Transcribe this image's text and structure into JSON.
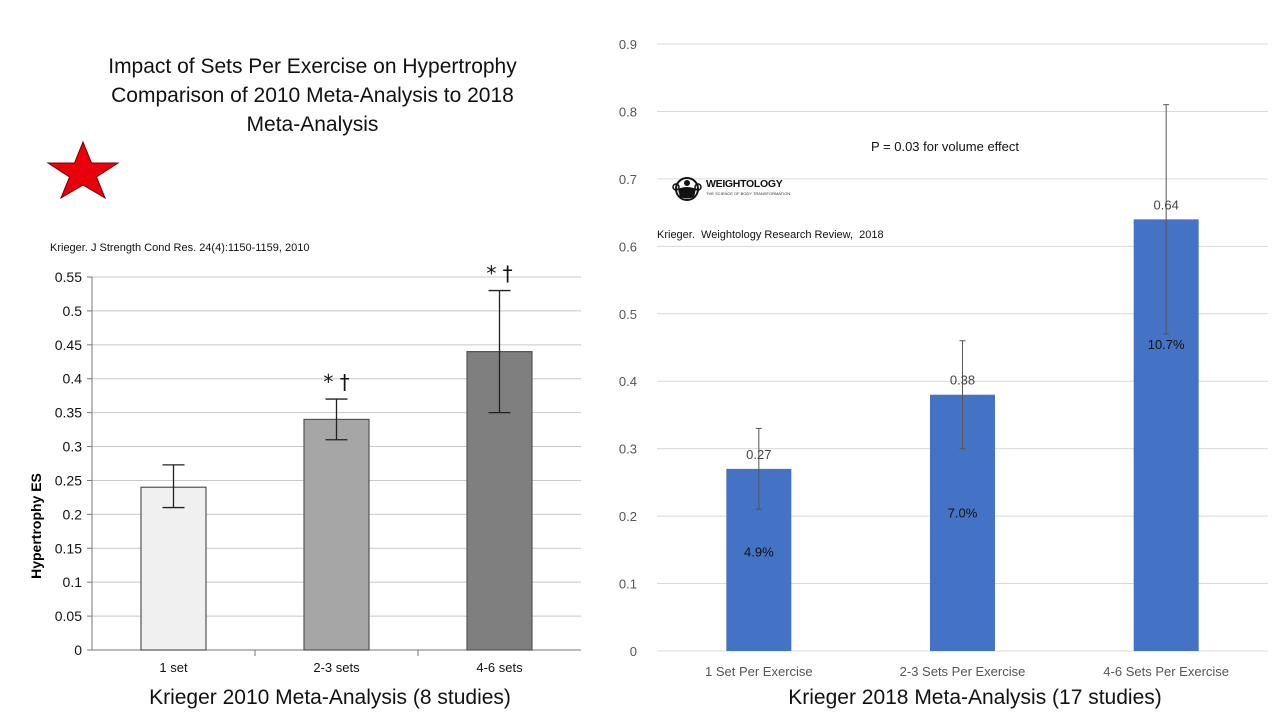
{
  "slide": {
    "title_line1": "Impact of Sets Per Exercise on Hypertrophy",
    "title_line2": "Comparison of 2010 Meta-Analysis to 2018",
    "title_line3": "Meta-Analysis",
    "caption_left": "Krieger 2010 Meta-Analysis (8 studies)",
    "caption_right": "Krieger 2018 Meta-Analysis (17 studies)",
    "logo_text": "WEIGHTOLOGY",
    "logo_subtext": "THE SCIENCE OF BODY TRANSFORMATION",
    "star_icon": "red-star-icon",
    "star_color": "#e8000b"
  },
  "chart_data": [
    {
      "type": "bar",
      "annotation": "Krieger. J Strength Cond Res. 24(4):1150-1159, 2010",
      "ylabel": "Hypertrophy ES",
      "xlabel": "",
      "ylim": [
        0,
        0.55
      ],
      "yticks": [
        "0",
        "0.05",
        "0.1",
        "0.15",
        "0.2",
        "0.25",
        "0.3",
        "0.35",
        "0.4",
        "0.45",
        "0.5",
        "0.55"
      ],
      "grid": true,
      "categories": [
        "1 set",
        "2-3 sets",
        "4-6 sets"
      ],
      "values": [
        0.24,
        0.34,
        0.44
      ],
      "error_low": [
        0.21,
        0.31,
        0.35
      ],
      "error_high": [
        0.273,
        0.37,
        0.53
      ],
      "bar_colors": [
        "#f0f0f0",
        "#a6a6a6",
        "#7f7f7f"
      ],
      "significance": [
        "",
        "* †",
        "* †"
      ]
    },
    {
      "type": "bar",
      "annotation": "Krieger.  Weightology Research Review,  2018",
      "note": "P = 0.03 for volume effect",
      "ylim": [
        0,
        0.9
      ],
      "yticks": [
        "0",
        "0.1",
        "0.2",
        "0.3",
        "0.4",
        "0.5",
        "0.6",
        "0.7",
        "0.8",
        "0.9"
      ],
      "grid": true,
      "categories": [
        "1 Set Per Exercise",
        "2-3 Sets Per Exercise",
        "4-6 Sets Per Exercise"
      ],
      "values": [
        0.27,
        0.38,
        0.64
      ],
      "value_labels": [
        "0.27",
        "0.38",
        "0.64"
      ],
      "error_low": [
        0.21,
        0.3,
        0.47
      ],
      "error_high": [
        0.33,
        0.46,
        0.81
      ],
      "percent_labels": [
        "4.9%",
        "7.0%",
        "10.7%"
      ],
      "bar_color": "#4472c4"
    }
  ]
}
